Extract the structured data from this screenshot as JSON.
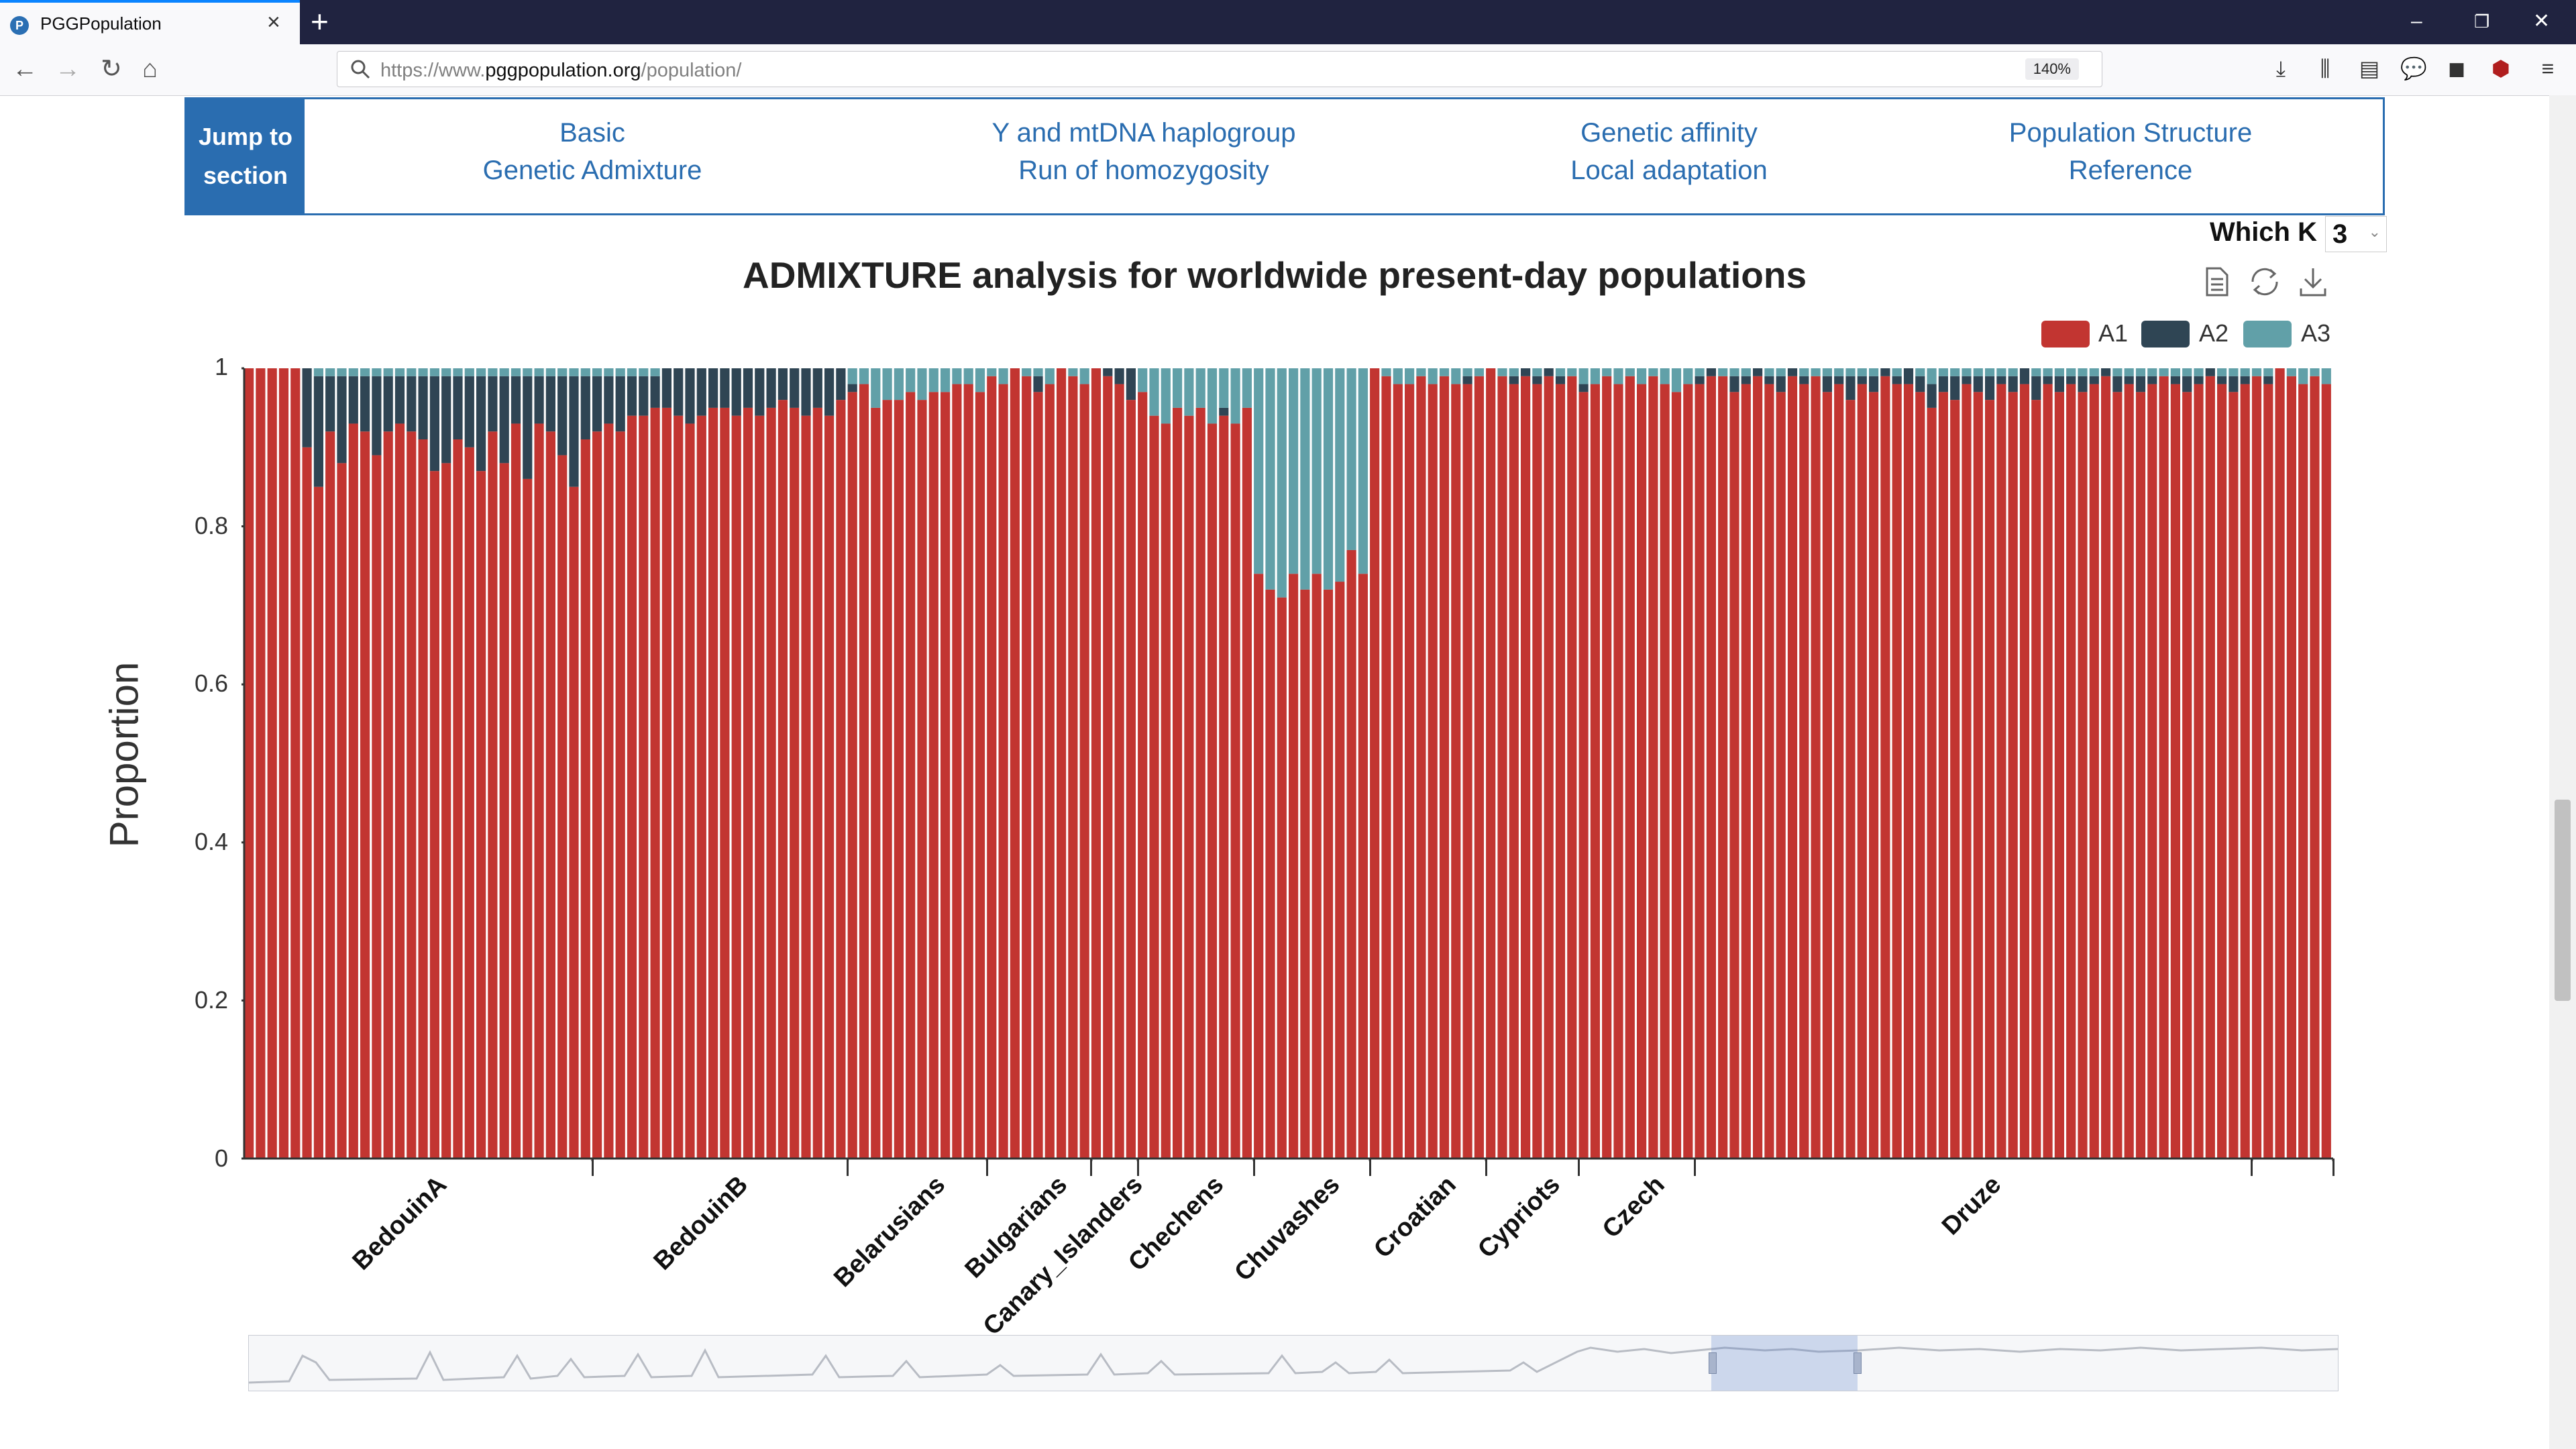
{
  "browser": {
    "tab_title": "PGGPopulation",
    "url_plain_start": "https://www.",
    "url_domain": "pggpopulation.org",
    "url_plain_end": "/population/",
    "zoom": "140%"
  },
  "jump": {
    "label_line1": "Jump to",
    "label_line2": "section",
    "links": [
      {
        "top": "Basic",
        "bottom": "Genetic Admixture"
      },
      {
        "top": "Y and mtDNA haplogroup",
        "bottom": "Run of homozygosity"
      },
      {
        "top": "Genetic affinity",
        "bottom": "Local adaptation"
      },
      {
        "top": "Population Structure",
        "bottom": "Reference"
      }
    ]
  },
  "which_k": {
    "label": "Which K",
    "value": "3"
  },
  "colors": {
    "A1": "#c23531",
    "A2": "#2f4554",
    "A3": "#61a0a8",
    "link": "#2a6db0"
  },
  "chart_data": {
    "type": "bar",
    "stacked": true,
    "title": "ADMIXTURE analysis for worldwide present-day populations",
    "ylabel": "Proportion",
    "xlabel": "",
    "ylim": [
      0,
      1
    ],
    "yticks": [
      "1",
      "0.8",
      "0.6",
      "0.4",
      "0.2",
      "0"
    ],
    "legend": [
      "A1",
      "A2",
      "A3"
    ],
    "legend_position": "top-right",
    "populations": [
      {
        "name": "BedouinA",
        "samples": [
          [
            1,
            0,
            0
          ],
          [
            1,
            0,
            0
          ],
          [
            1,
            0,
            0
          ],
          [
            1,
            0,
            0
          ],
          [
            1,
            0,
            0
          ],
          [
            0.9,
            0.1,
            0
          ],
          [
            0.85,
            0.14,
            0.01
          ],
          [
            0.92,
            0.07,
            0.01
          ],
          [
            0.88,
            0.11,
            0.01
          ],
          [
            0.93,
            0.06,
            0.01
          ],
          [
            0.92,
            0.07,
            0.01
          ],
          [
            0.89,
            0.1,
            0.01
          ],
          [
            0.92,
            0.07,
            0.01
          ],
          [
            0.93,
            0.06,
            0.01
          ],
          [
            0.92,
            0.07,
            0.01
          ],
          [
            0.91,
            0.08,
            0.01
          ],
          [
            0.87,
            0.12,
            0.01
          ],
          [
            0.88,
            0.11,
            0.01
          ],
          [
            0.91,
            0.08,
            0.01
          ],
          [
            0.9,
            0.09,
            0.01
          ],
          [
            0.87,
            0.12,
            0.01
          ],
          [
            0.92,
            0.07,
            0.01
          ],
          [
            0.88,
            0.11,
            0.01
          ],
          [
            0.93,
            0.06,
            0.01
          ],
          [
            0.86,
            0.13,
            0.01
          ],
          [
            0.93,
            0.06,
            0.01
          ],
          [
            0.92,
            0.07,
            0.01
          ],
          [
            0.89,
            0.1,
            0.01
          ],
          [
            0.85,
            0.14,
            0.01
          ],
          [
            0.91,
            0.08,
            0.01
          ]
        ]
      },
      {
        "name": "BedouinB",
        "samples": [
          [
            0.92,
            0.07,
            0.01
          ],
          [
            0.93,
            0.06,
            0.01
          ],
          [
            0.92,
            0.07,
            0.01
          ],
          [
            0.94,
            0.05,
            0.01
          ],
          [
            0.94,
            0.05,
            0.01
          ],
          [
            0.95,
            0.04,
            0.01
          ],
          [
            0.95,
            0.05,
            0
          ],
          [
            0.94,
            0.06,
            0
          ],
          [
            0.93,
            0.07,
            0
          ],
          [
            0.94,
            0.06,
            0
          ],
          [
            0.95,
            0.05,
            0
          ],
          [
            0.95,
            0.05,
            0
          ],
          [
            0.94,
            0.06,
            0
          ],
          [
            0.95,
            0.05,
            0
          ],
          [
            0.94,
            0.06,
            0
          ],
          [
            0.95,
            0.05,
            0
          ],
          [
            0.96,
            0.04,
            0
          ],
          [
            0.95,
            0.05,
            0
          ],
          [
            0.94,
            0.06,
            0
          ],
          [
            0.95,
            0.05,
            0
          ],
          [
            0.94,
            0.06,
            0
          ],
          [
            0.96,
            0.04,
            0
          ]
        ]
      },
      {
        "name": "Belarusians",
        "samples": [
          [
            0.97,
            0.01,
            0.02
          ],
          [
            0.98,
            0,
            0.02
          ],
          [
            0.95,
            0,
            0.05
          ],
          [
            0.96,
            0,
            0.04
          ],
          [
            0.96,
            0,
            0.04
          ],
          [
            0.97,
            0,
            0.03
          ],
          [
            0.96,
            0,
            0.04
          ],
          [
            0.97,
            0,
            0.03
          ],
          [
            0.97,
            0,
            0.03
          ],
          [
            0.98,
            0,
            0.02
          ],
          [
            0.98,
            0,
            0.02
          ],
          [
            0.97,
            0,
            0.03
          ]
        ]
      },
      {
        "name": "Bulgarians",
        "samples": [
          [
            0.99,
            0,
            0.01
          ],
          [
            0.98,
            0,
            0.02
          ],
          [
            1,
            0,
            0
          ],
          [
            0.99,
            0,
            0.01
          ],
          [
            0.97,
            0.02,
            0.01
          ],
          [
            0.98,
            0,
            0.02
          ],
          [
            1,
            0,
            0
          ],
          [
            0.99,
            0,
            0.01
          ],
          [
            0.98,
            0,
            0.02
          ]
        ]
      },
      {
        "name": "Canary_Islanders",
        "samples": [
          [
            1,
            0,
            0
          ],
          [
            0.99,
            0.01,
            0
          ],
          [
            0.98,
            0.02,
            0
          ],
          [
            0.96,
            0.04,
            0
          ]
        ]
      },
      {
        "name": "Chechens",
        "samples": [
          [
            0.97,
            0,
            0.03
          ],
          [
            0.94,
            0,
            0.06
          ],
          [
            0.93,
            0,
            0.07
          ],
          [
            0.95,
            0,
            0.05
          ],
          [
            0.94,
            0,
            0.06
          ],
          [
            0.95,
            0,
            0.05
          ],
          [
            0.93,
            0,
            0.07
          ],
          [
            0.94,
            0.01,
            0.05
          ],
          [
            0.93,
            0,
            0.07
          ],
          [
            0.95,
            0,
            0.05
          ]
        ]
      },
      {
        "name": "Chuvashes",
        "samples": [
          [
            0.74,
            0,
            0.26
          ],
          [
            0.72,
            0,
            0.28
          ],
          [
            0.71,
            0,
            0.29
          ],
          [
            0.74,
            0,
            0.26
          ],
          [
            0.72,
            0,
            0.28
          ],
          [
            0.74,
            0,
            0.26
          ],
          [
            0.72,
            0,
            0.28
          ],
          [
            0.73,
            0,
            0.27
          ],
          [
            0.77,
            0,
            0.23
          ],
          [
            0.74,
            0,
            0.26
          ]
        ]
      },
      {
        "name": "Croatian",
        "samples": [
          [
            1,
            0,
            0
          ],
          [
            0.99,
            0,
            0.01
          ],
          [
            0.98,
            0,
            0.02
          ],
          [
            0.98,
            0,
            0.02
          ],
          [
            0.99,
            0,
            0.01
          ],
          [
            0.98,
            0,
            0.02
          ],
          [
            0.99,
            0,
            0.01
          ],
          [
            0.98,
            0,
            0.02
          ],
          [
            0.98,
            0.01,
            0.01
          ],
          [
            0.99,
            0,
            0.01
          ]
        ]
      },
      {
        "name": "Cypriots",
        "samples": [
          [
            1,
            0,
            0
          ],
          [
            0.99,
            0,
            0.01
          ],
          [
            0.98,
            0.01,
            0.01
          ],
          [
            0.99,
            0.01,
            0
          ],
          [
            0.98,
            0.01,
            0.01
          ],
          [
            0.99,
            0.01,
            0
          ],
          [
            0.98,
            0.01,
            0.01
          ],
          [
            0.99,
            0,
            0.01
          ]
        ]
      },
      {
        "name": "Czech",
        "samples": [
          [
            0.97,
            0.01,
            0.02
          ],
          [
            0.98,
            0,
            0.02
          ],
          [
            0.99,
            0,
            0.01
          ],
          [
            0.98,
            0,
            0.02
          ],
          [
            0.99,
            0,
            0.01
          ],
          [
            0.98,
            0,
            0.02
          ],
          [
            0.99,
            0,
            0.01
          ],
          [
            0.98,
            0,
            0.02
          ],
          [
            0.97,
            0,
            0.03
          ],
          [
            0.98,
            0,
            0.02
          ]
        ]
      },
      {
        "name": "Druze",
        "samples": [
          [
            0.98,
            0.01,
            0.01
          ],
          [
            0.99,
            0.01,
            0
          ],
          [
            0.99,
            0,
            0.01
          ],
          [
            0.97,
            0.02,
            0.01
          ],
          [
            0.98,
            0.01,
            0.01
          ],
          [
            0.99,
            0.01,
            0
          ],
          [
            0.98,
            0.01,
            0.01
          ],
          [
            0.97,
            0.02,
            0.01
          ],
          [
            0.99,
            0.01,
            0
          ],
          [
            0.98,
            0.01,
            0.01
          ],
          [
            0.99,
            0,
            0.01
          ],
          [
            0.97,
            0.02,
            0.01
          ],
          [
            0.98,
            0.01,
            0.01
          ],
          [
            0.96,
            0.03,
            0.01
          ],
          [
            0.98,
            0.01,
            0.01
          ],
          [
            0.97,
            0.02,
            0.01
          ],
          [
            0.99,
            0.01,
            0
          ],
          [
            0.98,
            0.01,
            0.01
          ],
          [
            0.98,
            0.02,
            0
          ],
          [
            0.97,
            0.02,
            0.01
          ],
          [
            0.95,
            0.03,
            0.02
          ],
          [
            0.97,
            0.02,
            0.01
          ],
          [
            0.96,
            0.03,
            0.01
          ],
          [
            0.98,
            0.01,
            0.01
          ],
          [
            0.97,
            0.02,
            0.01
          ],
          [
            0.96,
            0.03,
            0.01
          ],
          [
            0.98,
            0.01,
            0.01
          ],
          [
            0.97,
            0.02,
            0.01
          ],
          [
            0.98,
            0.02,
            0
          ],
          [
            0.96,
            0.03,
            0.01
          ],
          [
            0.98,
            0.01,
            0.01
          ],
          [
            0.97,
            0.02,
            0.01
          ],
          [
            0.98,
            0.01,
            0.01
          ],
          [
            0.97,
            0.02,
            0.01
          ],
          [
            0.98,
            0.01,
            0.01
          ],
          [
            0.99,
            0.01,
            0
          ],
          [
            0.97,
            0.02,
            0.01
          ],
          [
            0.98,
            0.01,
            0.01
          ],
          [
            0.97,
            0.02,
            0.01
          ],
          [
            0.98,
            0.01,
            0.01
          ],
          [
            0.99,
            0,
            0.01
          ],
          [
            0.98,
            0.01,
            0.01
          ],
          [
            0.97,
            0.02,
            0.01
          ],
          [
            0.98,
            0.01,
            0.01
          ],
          [
            0.99,
            0.01,
            0
          ],
          [
            0.98,
            0.01,
            0.01
          ],
          [
            0.97,
            0.02,
            0.01
          ],
          [
            0.98,
            0.01,
            0.01
          ]
        ]
      },
      {
        "name": "",
        "samples": [
          [
            0.99,
            0,
            0.01
          ],
          [
            0.98,
            0.01,
            0.01
          ],
          [
            1,
            0,
            0
          ],
          [
            0.99,
            0,
            0.01
          ],
          [
            0.98,
            0,
            0.02
          ],
          [
            0.99,
            0,
            0.01
          ],
          [
            0.98,
            0,
            0.02
          ]
        ]
      }
    ]
  }
}
